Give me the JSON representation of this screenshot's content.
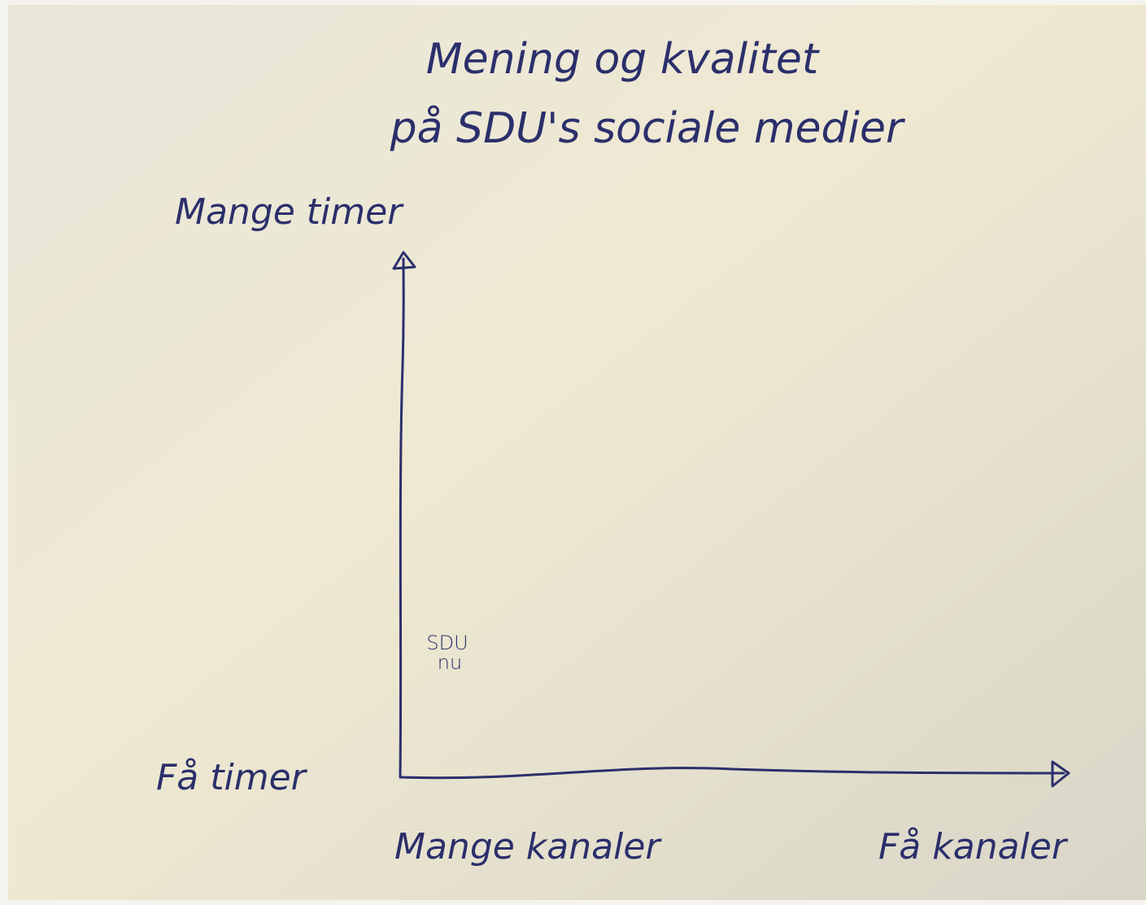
{
  "title": {
    "line1": "Mening og kvalitet",
    "line2": "på SDU's sociale medier"
  },
  "y_axis": {
    "top_label": "Mange timer",
    "bottom_label": "Få timer"
  },
  "x_axis": {
    "left_label": "Mange kanaler",
    "right_label": "Få kanaler"
  },
  "point": {
    "line1": "SDU",
    "line2": "nu"
  }
}
